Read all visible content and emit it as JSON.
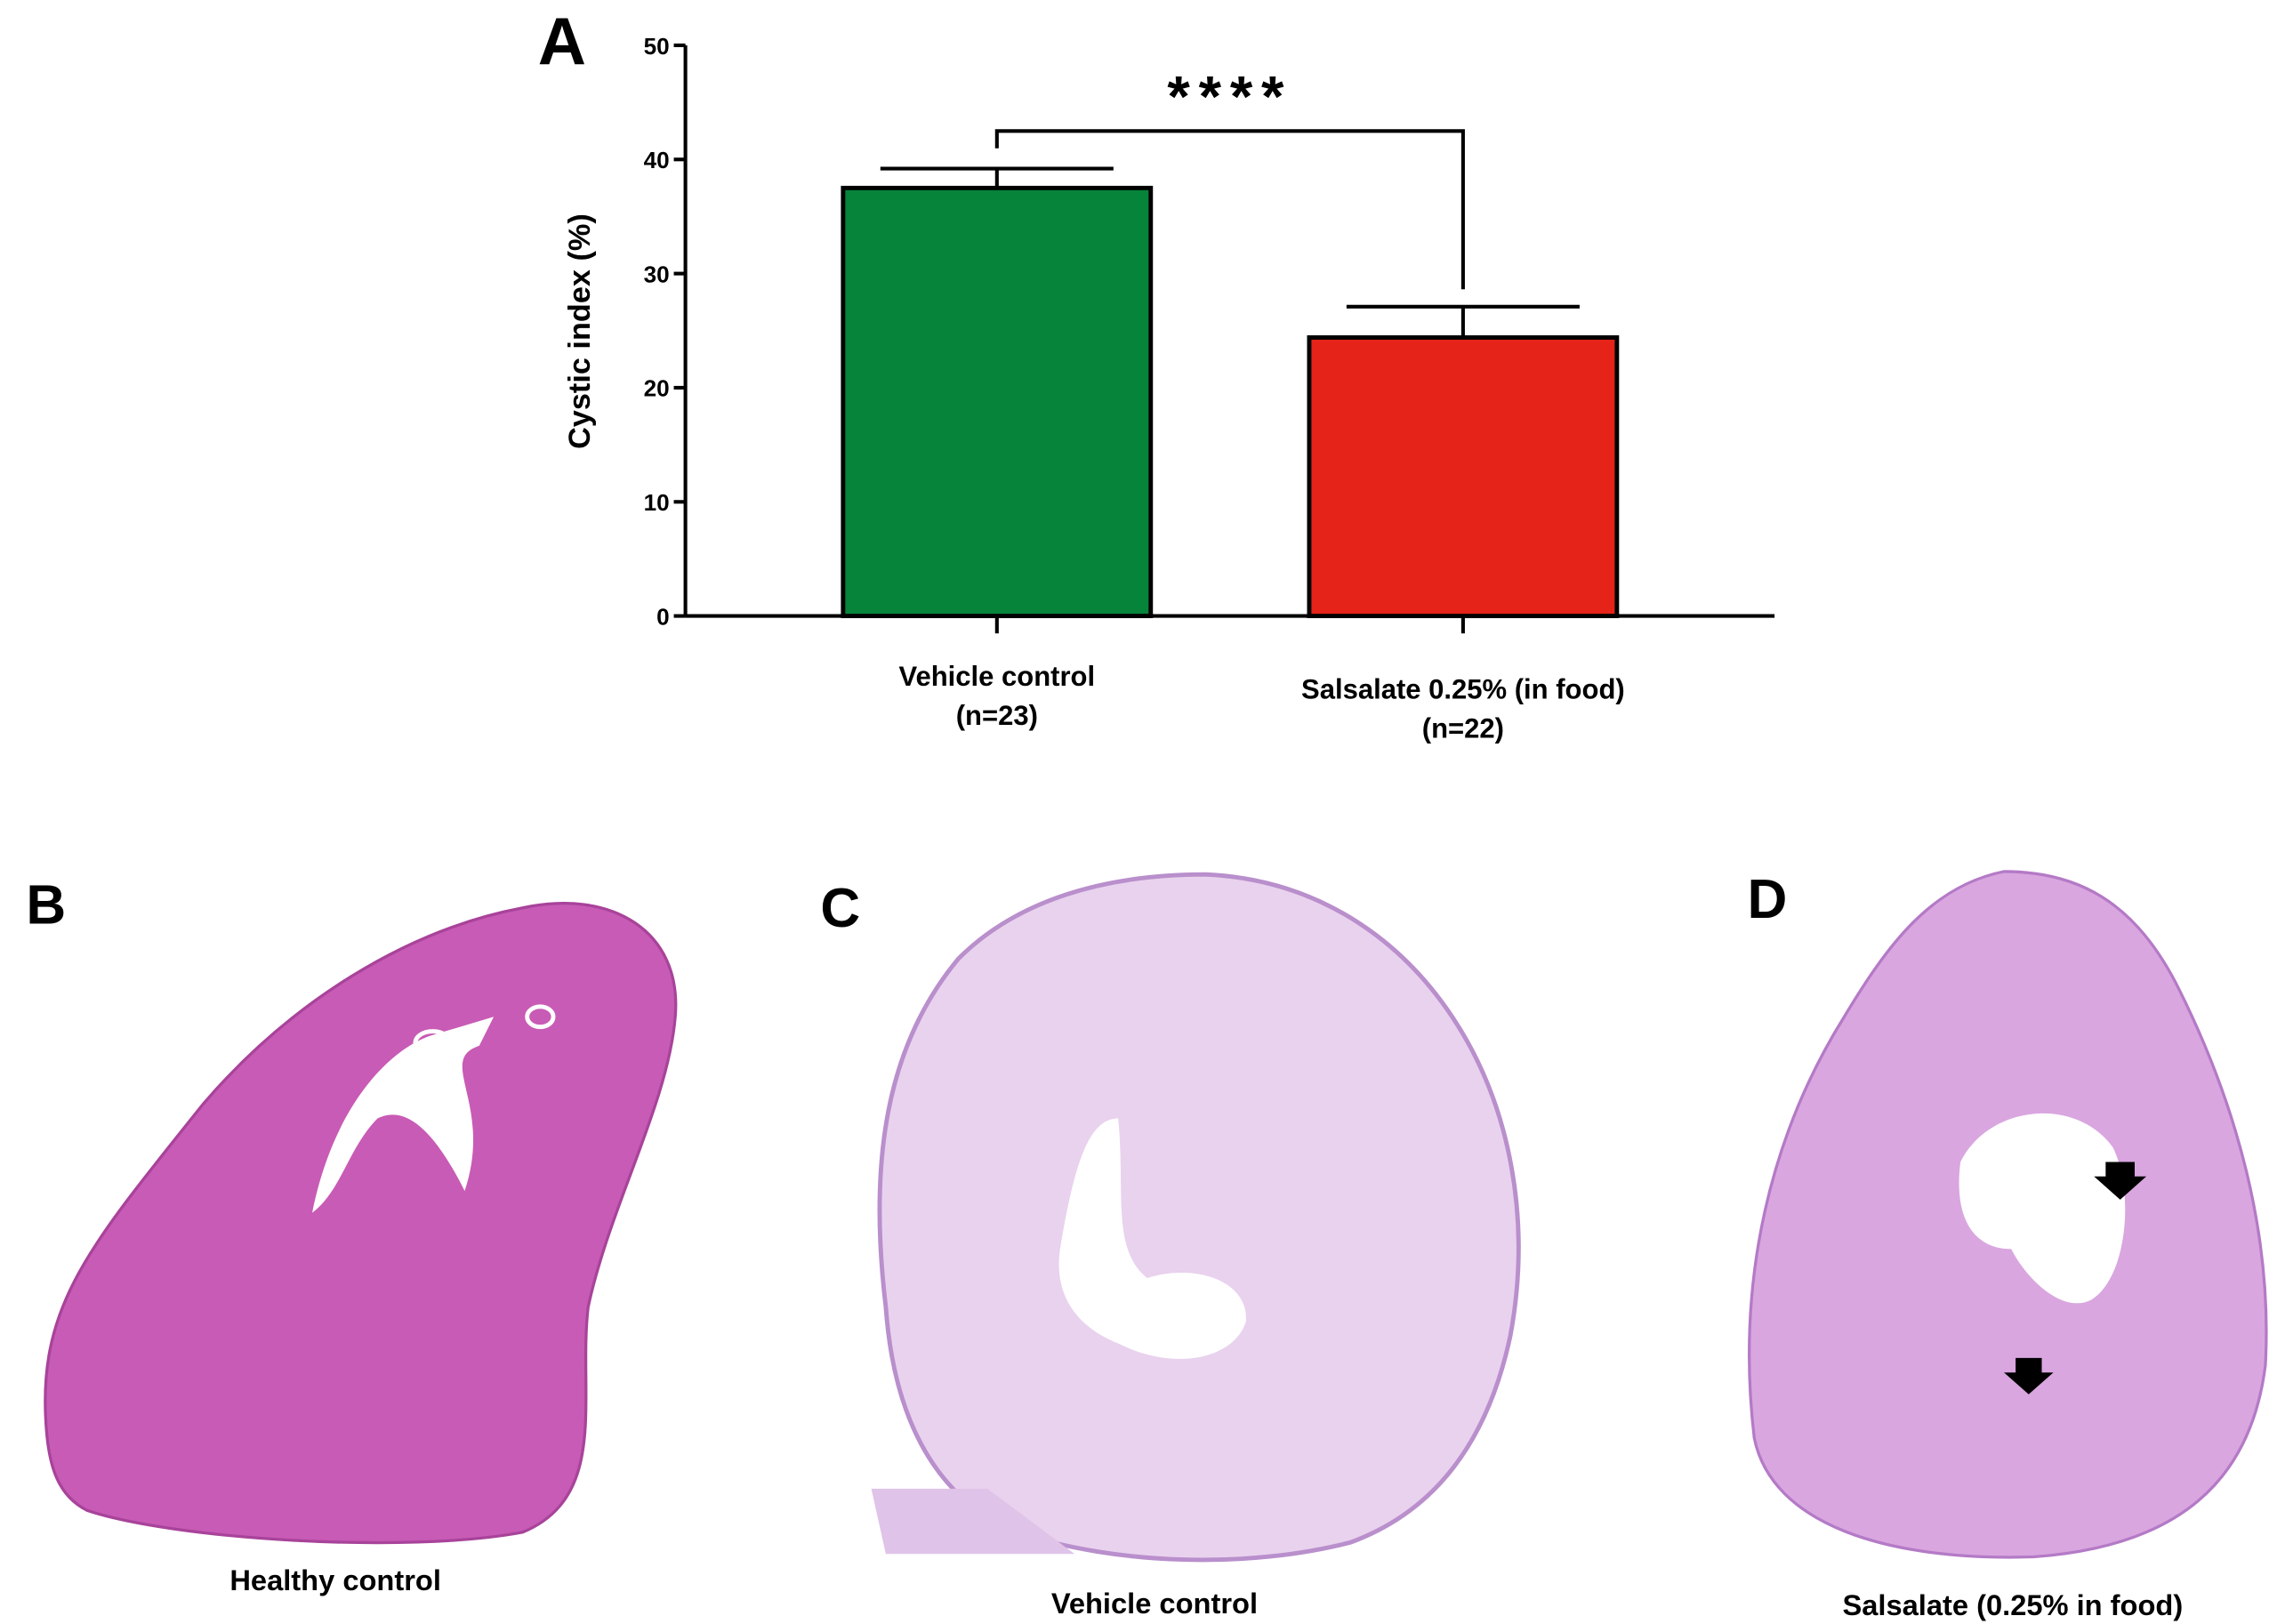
{
  "chart_data": {
    "type": "bar",
    "panel_label": "A",
    "ylabel": "Cystic index (%)",
    "categories": [
      "Vehicle control",
      "Salsalate 0.25% (in food)"
    ],
    "sample_sizes": [
      "(n=23)",
      "(n=22)"
    ],
    "values": [
      37.5,
      24.4
    ],
    "errors": [
      1.7,
      2.7
    ],
    "colors": [
      "#05843a",
      "#e52318"
    ],
    "ylim": [
      0,
      50
    ],
    "yticks": [
      0,
      10,
      20,
      30,
      40,
      50
    ],
    "annotation": "****"
  },
  "panels": [
    {
      "label": "B",
      "caption": "Healthy control"
    },
    {
      "label": "C",
      "caption": "Vehicle control"
    },
    {
      "label": "D",
      "caption": "Salsalate (0.25% in food)"
    }
  ]
}
